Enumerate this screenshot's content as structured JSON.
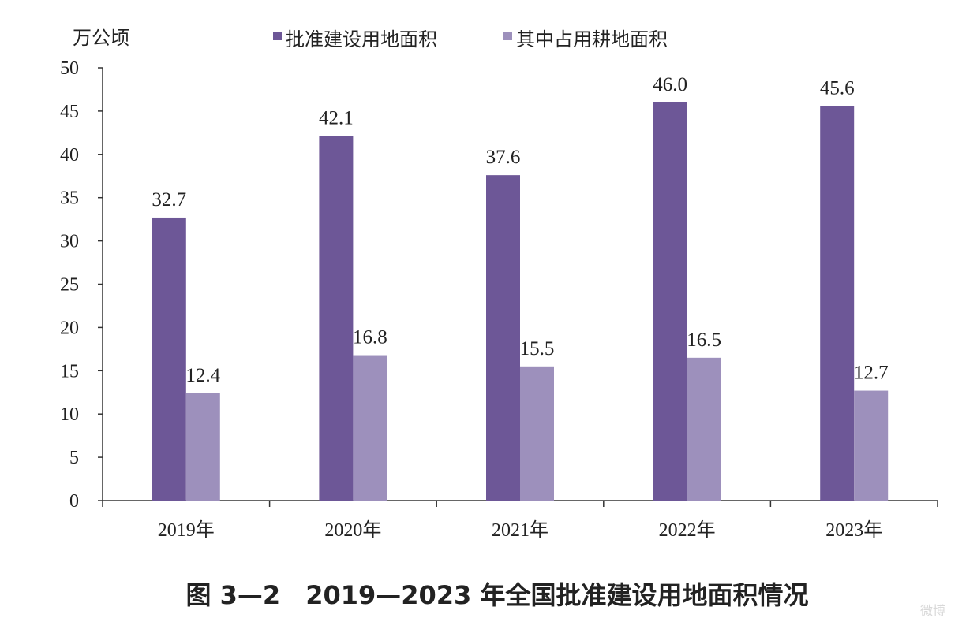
{
  "chart_data": {
    "type": "bar",
    "unit_label": "万公顷",
    "categories": [
      "2019年",
      "2020年",
      "2021年",
      "2022年",
      "2023年"
    ],
    "series": [
      {
        "name": "批准建设用地面积",
        "values": [
          32.7,
          42.1,
          37.6,
          46.0,
          45.6
        ],
        "labels": [
          "32.7",
          "42.1",
          "37.6",
          "46.0",
          "45.6"
        ],
        "color": "#6d5797"
      },
      {
        "name": "其中占用耕地面积",
        "values": [
          12.4,
          16.8,
          15.5,
          16.5,
          12.7
        ],
        "labels": [
          "12.4",
          "16.8",
          "15.5",
          "16.5",
          "12.7"
        ],
        "color": "#9d90bc"
      }
    ],
    "ylim": [
      0,
      50
    ],
    "yticks": [
      0,
      5,
      10,
      15,
      20,
      25,
      30,
      35,
      40,
      45,
      50
    ],
    "legend_position": "top",
    "grid": false,
    "caption": "图 3—2　2019—2023 年全国批准建设用地面积情况"
  },
  "watermark": "微博"
}
